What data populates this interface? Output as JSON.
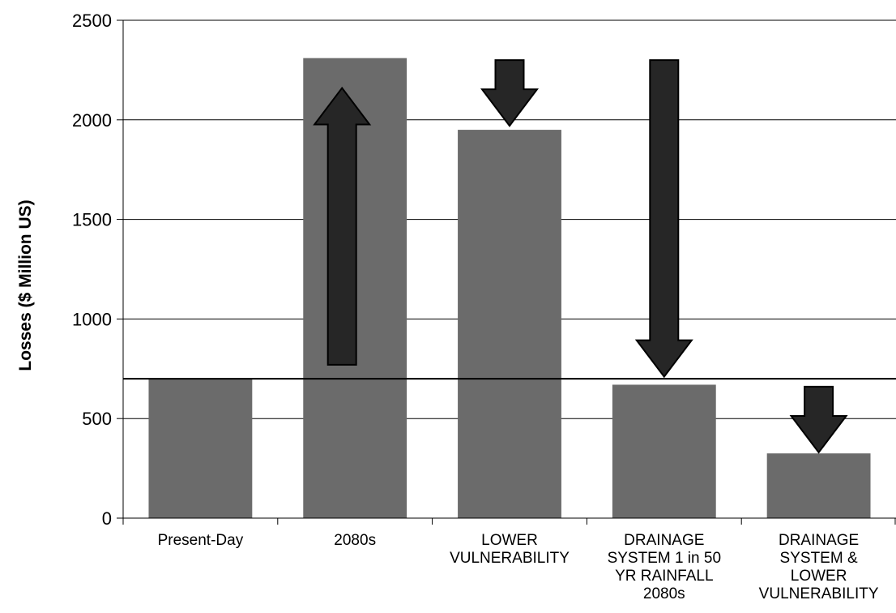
{
  "chart_data": {
    "type": "bar",
    "title": "",
    "xlabel": "",
    "ylabel": "Losses ($ Million US)",
    "ylim": [
      0,
      2500
    ],
    "yticks": [
      0,
      500,
      1000,
      1500,
      2000,
      2500
    ],
    "grid": true,
    "categories": [
      [
        "Present-Day"
      ],
      [
        "2080s"
      ],
      [
        "LOWER",
        "VULNERABILITY"
      ],
      [
        "DRAINAGE",
        "SYSTEM 1 in 50",
        "YR RAINFALL",
        "2080s"
      ],
      [
        "DRAINAGE",
        "SYSTEM &",
        "LOWER",
        "VULNERABILITY"
      ]
    ],
    "values": [
      700,
      2310,
      1950,
      670,
      325
    ],
    "reference_line": 700,
    "arrows": [
      {
        "direction": "up",
        "from": 770,
        "to": 2160
      },
      {
        "direction": "down",
        "from": 2300,
        "to": 1970
      },
      {
        "direction": "down",
        "from": 2300,
        "to": 710
      },
      {
        "direction": "down",
        "from": 660,
        "to": 330
      }
    ],
    "colors": {
      "bar": "#6b6b6b",
      "arrow": "#262626",
      "grid": "#000000",
      "background": "#ffffff"
    }
  }
}
